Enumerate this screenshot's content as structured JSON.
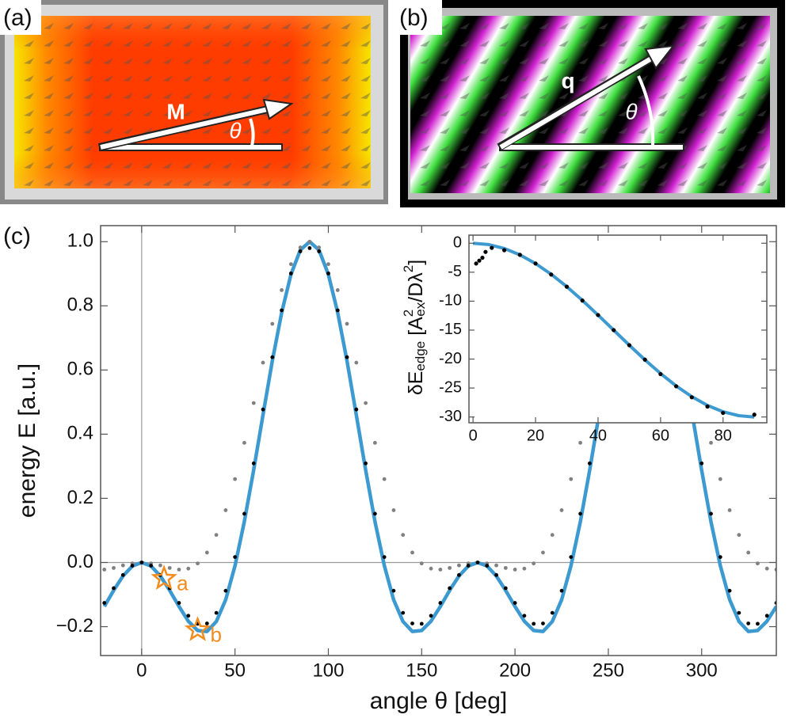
{
  "panels": [
    {
      "label": "(a)",
      "vector": "M",
      "angle": "θ"
    },
    {
      "label": "(b)",
      "vector": "q",
      "angle": "θ"
    }
  ],
  "chart_data": [
    {
      "type": "line",
      "panel_label": "(c)",
      "xlabel": "angle θ [deg]",
      "ylabel": "energy E [a.u.]",
      "xlim": [
        -22,
        340
      ],
      "ylim": [
        -0.29,
        1.05
      ],
      "xticks": [
        0,
        50,
        100,
        150,
        200,
        250,
        300
      ],
      "yticks": [
        {
          "value": -0.2,
          "label": "−0.2"
        },
        {
          "value": 0,
          "label": "0.0"
        },
        0.2,
        0.4,
        0.6,
        0.8,
        {
          "value": 1,
          "label": "1.0"
        }
      ],
      "zero_lines": true,
      "x": [
        -20,
        -15,
        -10,
        -5,
        0,
        5,
        10,
        15,
        20,
        25,
        30,
        35,
        40,
        45,
        50,
        55,
        60,
        65,
        70,
        75,
        80,
        85,
        90,
        95,
        100,
        105,
        110,
        115,
        120,
        125,
        130,
        135,
        140,
        145,
        150,
        155,
        160,
        165,
        170,
        175,
        180,
        185,
        190,
        195,
        200,
        205,
        210,
        215,
        220,
        225,
        230,
        235,
        240,
        245,
        250,
        255,
        260,
        265,
        270,
        275,
        280,
        285,
        290,
        295,
        300,
        305,
        310,
        315,
        320,
        325,
        330,
        335,
        340
      ],
      "series": [
        {
          "style": "line",
          "color": "#3d9ad1",
          "values": [
            -0.137,
            -0.087,
            -0.042,
            -0.011,
            0,
            -0.011,
            -0.042,
            -0.087,
            -0.137,
            -0.183,
            -0.212,
            -0.215,
            -0.184,
            -0.116,
            -0.01,
            0.127,
            0.288,
            0.46,
            0.629,
            0.779,
            0.898,
            0.974,
            1.0,
            0.974,
            0.898,
            0.779,
            0.629,
            0.46,
            0.288,
            0.127,
            -0.01,
            -0.116,
            -0.184,
            -0.215,
            -0.212,
            -0.183,
            -0.137,
            -0.087,
            -0.042,
            -0.011,
            0,
            -0.011,
            -0.042,
            -0.087,
            -0.137,
            -0.183,
            -0.212,
            -0.215,
            -0.184,
            -0.116,
            -0.01,
            0.127,
            0.288,
            0.46,
            0.629,
            0.779,
            0.898,
            0.974,
            1.0,
            0.974,
            0.898,
            0.779,
            0.629,
            0.46,
            0.288,
            0.127,
            -0.01,
            -0.116,
            -0.184,
            -0.215,
            -0.212,
            -0.183,
            -0.137
          ]
        },
        {
          "style": "dots",
          "color": "#808080",
          "values": [
            -0.022,
            -0.017,
            -0.009,
            -0.003,
            0,
            -0.003,
            -0.009,
            -0.017,
            -0.022,
            -0.019,
            -0.003,
            0.031,
            0.086,
            0.163,
            0.26,
            0.373,
            0.497,
            0.623,
            0.744,
            0.849,
            0.93,
            0.982,
            1,
            0.982,
            0.93,
            0.849,
            0.744,
            0.623,
            0.497,
            0.373,
            0.26,
            0.163,
            0.086,
            0.031,
            -0.003,
            -0.019,
            -0.022,
            -0.017,
            -0.009,
            -0.003,
            0,
            -0.003,
            -0.009,
            -0.017,
            -0.022,
            -0.019,
            -0.003,
            0.031,
            0.086,
            0.163,
            0.26,
            0.373,
            0.497,
            0.623,
            0.744,
            0.849,
            0.93,
            0.982,
            1,
            0.982,
            0.93,
            0.849,
            0.744,
            0.623,
            0.497,
            0.373,
            0.26,
            0.163,
            0.086,
            0.031,
            -0.003,
            -0.019,
            -0.022
          ]
        },
        {
          "style": "dots",
          "color": "#000000",
          "values": [
            -0.126,
            -0.08,
            -0.039,
            -0.01,
            0,
            -0.01,
            -0.039,
            -0.08,
            -0.126,
            -0.166,
            -0.191,
            -0.19,
            -0.157,
            -0.088,
            0.017,
            0.152,
            0.309,
            0.477,
            0.64,
            0.786,
            0.901,
            0.97,
            0.98,
            0.97,
            0.901,
            0.786,
            0.64,
            0.477,
            0.309,
            0.152,
            0.017,
            -0.088,
            -0.157,
            -0.19,
            -0.191,
            -0.166,
            -0.126,
            -0.08,
            -0.039,
            -0.01,
            0,
            -0.01,
            -0.039,
            -0.08,
            -0.126,
            -0.166,
            -0.191,
            -0.19,
            -0.157,
            -0.088,
            0.017,
            0.152,
            0.309,
            0.477,
            0.64,
            0.786,
            0.901,
            0.97,
            0.98,
            0.97,
            0.901,
            0.786,
            0.64,
            0.477,
            0.309,
            0.152,
            0.017,
            -0.088,
            -0.157,
            -0.19,
            -0.191,
            -0.166,
            -0.126
          ]
        }
      ],
      "annotations": [
        {
          "text": "a",
          "x": 12,
          "y": -0.05,
          "color": "#f28c1e"
        },
        {
          "text": "b",
          "x": 30,
          "y": -0.21,
          "color": "#f28c1e"
        }
      ]
    },
    {
      "type": "line",
      "ylabel": [
        "δE",
        "edge",
        " [A",
        "2",
        "ex",
        "/Dλ",
        "2",
        "]"
      ],
      "xlim": [
        -1.3,
        94
      ],
      "ylim": [
        -31,
        1.4
      ],
      "xticks": [
        0,
        20,
        40,
        60,
        80
      ],
      "yticks": [
        0,
        -5,
        -10,
        -15,
        -20,
        -25,
        -30
      ],
      "series": [
        {
          "style": "line",
          "color": "#3d9ad1",
          "x": [
            0,
            5,
            10,
            15,
            20,
            25,
            30,
            35,
            40,
            45,
            50,
            55,
            60,
            65,
            70,
            75,
            80,
            85,
            90
          ],
          "values": [
            0,
            -0.23,
            -0.9,
            -2.01,
            -3.51,
            -5.36,
            -7.5,
            -9.87,
            -12.4,
            -15,
            -17.6,
            -20.13,
            -22.5,
            -24.64,
            -26.49,
            -27.99,
            -29.1,
            -29.77,
            -30
          ]
        },
        {
          "style": "dots",
          "color": "#000000",
          "x": [
            1,
            2,
            3,
            4,
            6,
            10,
            15,
            20,
            25,
            30,
            35,
            40,
            45,
            50,
            55,
            60,
            65,
            70,
            75,
            80,
            90
          ],
          "values": [
            -3.5,
            -3,
            -2.5,
            -1.5,
            -0.8,
            -1.2,
            -2.0,
            -3.5,
            -5.4,
            -7.5,
            -9.9,
            -12.4,
            -15.0,
            -17.6,
            -20.1,
            -22.6,
            -24.7,
            -26.6,
            -28.2,
            -29.3,
            -29.6
          ]
        }
      ]
    }
  ]
}
